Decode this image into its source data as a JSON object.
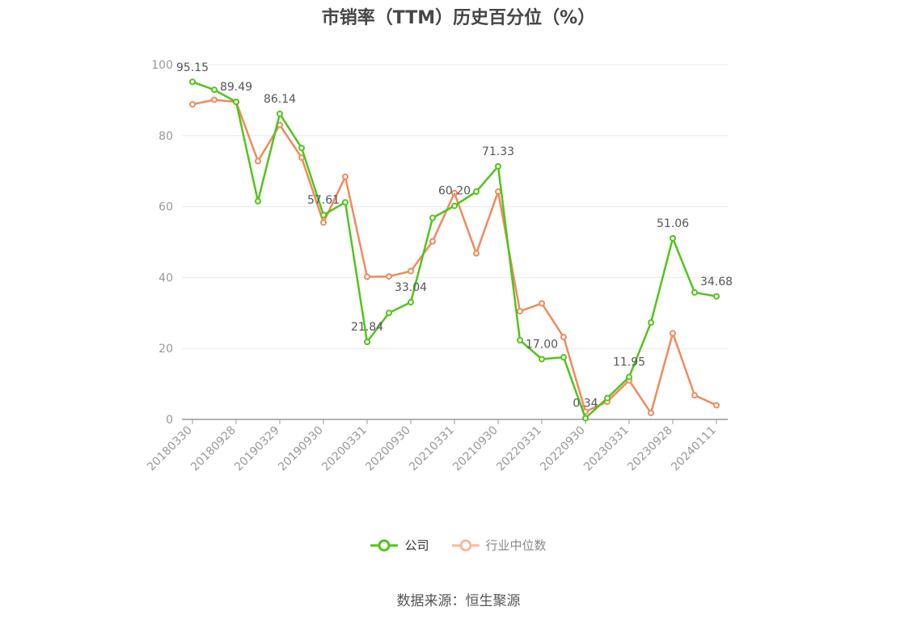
{
  "title": "市销率（TTM）历史百分位（%）",
  "source": "数据来源：恒生聚源",
  "colors": {
    "company": "#52c41a",
    "industry": "#f08a5d",
    "industry_legend": "#f8b99c",
    "grid": "#e6e9f0",
    "axis": "#999999"
  },
  "chart_data": {
    "type": "line",
    "title": "市销率（TTM）历史百分位（%）",
    "xlabel": "",
    "ylabel": "",
    "ylim": [
      0,
      100
    ],
    "yticks": [
      0,
      20,
      40,
      60,
      80,
      100
    ],
    "grid": true,
    "legend_position": "bottom",
    "x_tick_labels": [
      "20180330",
      "20180928",
      "20190329",
      "20190930",
      "20200331",
      "20200930",
      "20210331",
      "20210930",
      "20220331",
      "20220930",
      "20230331",
      "20230928",
      "20240111"
    ],
    "series": [
      {
        "name": "公司",
        "values": [
          95.15,
          92.9,
          89.49,
          61.5,
          86.14,
          76.5,
          57.61,
          61.2,
          21.84,
          30.0,
          33.04,
          56.8,
          60.2,
          64.2,
          71.33,
          22.3,
          17.0,
          17.5,
          0.34,
          6.0,
          11.95,
          27.3,
          51.06,
          35.8,
          34.68
        ]
      },
      {
        "name": "行业中位数",
        "values": [
          88.8,
          90.1,
          89.5,
          72.8,
          83.0,
          73.8,
          55.5,
          68.4,
          40.2,
          40.3,
          41.8,
          50.2,
          63.8,
          46.8,
          64.2,
          30.5,
          32.7,
          23.2,
          2.2,
          5.0,
          11.0,
          1.8,
          24.3,
          6.8,
          4.0
        ]
      }
    ],
    "data_labels": [
      {
        "index": 0,
        "text": "95.15"
      },
      {
        "index": 2,
        "text": "89.49"
      },
      {
        "index": 4,
        "text": "86.14"
      },
      {
        "index": 6,
        "text": "57.61"
      },
      {
        "index": 8,
        "text": "21.84"
      },
      {
        "index": 10,
        "text": "33.04"
      },
      {
        "index": 12,
        "text": "60.20"
      },
      {
        "index": 14,
        "text": "71.33"
      },
      {
        "index": 16,
        "text": "17.00"
      },
      {
        "index": 18,
        "text": "0.34"
      },
      {
        "index": 20,
        "text": "11.95"
      },
      {
        "index": 22,
        "text": "51.06"
      },
      {
        "index": 24,
        "text": "34.68"
      }
    ]
  }
}
